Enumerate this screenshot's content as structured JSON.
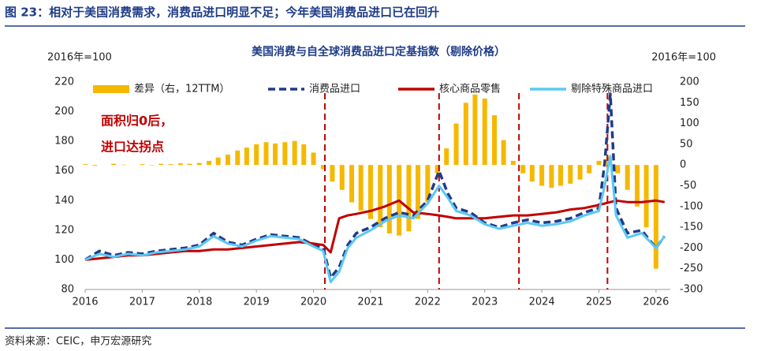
{
  "header": {
    "title": "图 23：相对于美国消费需求，消费品进口明显不足；今年美国消费品进口已在回升"
  },
  "footer": {
    "source": "资料来源：CEIC，申万宏源研究"
  },
  "chart_data": {
    "type": "line",
    "title": "美国消费与自全球消费品进口定基指数（剔除价格）",
    "y_label": "2016年=100",
    "y2_label": "2016年=100",
    "annotation": [
      "面积归0后，",
      "进口达拐点"
    ],
    "xlim": [
      2016,
      2026.25
    ],
    "xticks": [
      2016,
      2017,
      2018,
      2019,
      2020,
      2021,
      2022,
      2023,
      2024,
      2025,
      2026
    ],
    "ylim": [
      80,
      220
    ],
    "yticks": [
      80,
      100,
      120,
      140,
      160,
      180,
      200,
      220
    ],
    "y2lim": [
      -300,
      200
    ],
    "y2ticks": [
      -300,
      -250,
      -200,
      -150,
      -100,
      -50,
      0,
      50,
      100,
      150,
      200
    ],
    "vlines": [
      2020.2,
      2022.2,
      2023.6,
      2025.15
    ],
    "x": [
      2016.0,
      2016.25,
      2016.5,
      2016.75,
      2017.0,
      2017.25,
      2017.5,
      2017.75,
      2018.0,
      2018.25,
      2018.5,
      2018.75,
      2019.0,
      2019.25,
      2019.5,
      2019.75,
      2020.0,
      2020.17,
      2020.3,
      2020.45,
      2020.6,
      2020.75,
      2021.0,
      2021.25,
      2021.5,
      2021.75,
      2022.0,
      2022.2,
      2022.35,
      2022.5,
      2022.75,
      2023.0,
      2023.25,
      2023.5,
      2023.75,
      2024.0,
      2024.25,
      2024.5,
      2024.75,
      2025.0,
      2025.1,
      2025.2,
      2025.3,
      2025.5,
      2025.75,
      2026.0,
      2026.15
    ],
    "series": [
      {
        "name": "差异（右，12TTM）",
        "color": "#F5B800",
        "type": "bar",
        "axis": "y2",
        "x": [
          2016.0,
          2016.17,
          2016.33,
          2016.5,
          2016.67,
          2016.83,
          2017.0,
          2017.17,
          2017.33,
          2017.5,
          2017.67,
          2017.83,
          2018.0,
          2018.17,
          2018.33,
          2018.5,
          2018.67,
          2018.83,
          2019.0,
          2019.17,
          2019.33,
          2019.5,
          2019.67,
          2019.83,
          2020.0,
          2020.17,
          2020.33,
          2020.5,
          2020.67,
          2020.83,
          2021.0,
          2021.17,
          2021.33,
          2021.5,
          2021.67,
          2021.83,
          2022.0,
          2022.17,
          2022.33,
          2022.5,
          2022.67,
          2022.83,
          2023.0,
          2023.17,
          2023.33,
          2023.5,
          2023.67,
          2023.83,
          2024.0,
          2024.17,
          2024.33,
          2024.5,
          2024.67,
          2024.83,
          2025.0,
          2025.17,
          2025.33,
          2025.5,
          2025.67,
          2025.83,
          2026.0
        ],
        "values": [
          2,
          -2,
          0,
          3,
          1,
          0,
          2,
          -1,
          3,
          2,
          4,
          3,
          5,
          10,
          18,
          25,
          35,
          42,
          50,
          55,
          52,
          55,
          58,
          50,
          30,
          -10,
          -40,
          -60,
          -90,
          -110,
          -130,
          -150,
          -165,
          -170,
          -160,
          -130,
          -90,
          -20,
          40,
          100,
          150,
          170,
          160,
          120,
          60,
          10,
          -20,
          -40,
          -50,
          -55,
          -50,
          -45,
          -35,
          -20,
          10,
          20,
          -20,
          -60,
          -100,
          -150,
          -250
        ]
      },
      {
        "name": "消费品进口",
        "color": "#1F3C88",
        "type": "line",
        "dashed": true,
        "values": [
          100,
          106,
          103,
          105,
          104,
          106,
          107,
          108,
          110,
          118,
          112,
          110,
          114,
          117,
          116,
          115,
          110,
          108,
          88,
          95,
          110,
          118,
          122,
          128,
          132,
          130,
          140,
          160,
          145,
          135,
          132,
          125,
          122,
          125,
          127,
          125,
          126,
          128,
          132,
          135,
          165,
          212,
          135,
          118,
          120,
          108,
          116
        ]
      },
      {
        "name": "核心商品零售",
        "color": "#C00000",
        "type": "line",
        "values": [
          100,
          101,
          102,
          103,
          103,
          104,
          105,
          106,
          106,
          107,
          107,
          108,
          109,
          110,
          111,
          112,
          111,
          110,
          105,
          128,
          130,
          131,
          133,
          136,
          140,
          132,
          131,
          130,
          129,
          128,
          128,
          128,
          129,
          130,
          130,
          131,
          132,
          134,
          135,
          137,
          138,
          139,
          140,
          139,
          139,
          140,
          139
        ]
      },
      {
        "name": "剔除特殊商品进口",
        "color": "#5BC8F5",
        "type": "line",
        "values": [
          100,
          104,
          102,
          104,
          103,
          105,
          106,
          107,
          109,
          116,
          111,
          109,
          113,
          116,
          115,
          114,
          109,
          106,
          85,
          92,
          108,
          115,
          120,
          126,
          130,
          128,
          138,
          150,
          142,
          133,
          130,
          124,
          121,
          123,
          125,
          123,
          124,
          126,
          130,
          133,
          150,
          170,
          130,
          115,
          118,
          108,
          116
        ]
      }
    ]
  }
}
